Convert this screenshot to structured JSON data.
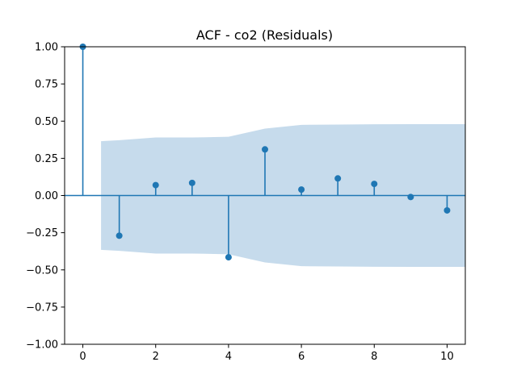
{
  "chart_data": {
    "type": "stem",
    "title": "ACF - co2 (Residuals)",
    "xlabel": "",
    "ylabel": "",
    "xlim": [
      -0.5,
      10.5
    ],
    "ylim": [
      -1.0,
      1.0
    ],
    "x_ticks": [
      0,
      2,
      4,
      6,
      8,
      10
    ],
    "x_tick_labels": [
      "0",
      "2",
      "4",
      "6",
      "8",
      "10"
    ],
    "y_ticks": [
      -1.0,
      -0.75,
      -0.5,
      -0.25,
      0.0,
      0.25,
      0.5,
      0.75,
      1.0
    ],
    "y_tick_labels": [
      "−1.00",
      "−0.75",
      "−0.50",
      "−0.25",
      "0.00",
      "0.25",
      "0.50",
      "0.75",
      "1.00"
    ],
    "grid": false,
    "series": [
      {
        "lags": [
          0,
          1,
          2,
          3,
          4,
          5,
          6,
          7,
          8,
          9,
          10
        ],
        "values": [
          1.0,
          -0.27,
          0.07,
          0.085,
          -0.415,
          0.31,
          0.04,
          0.115,
          0.078,
          -0.01,
          -0.1
        ]
      }
    ],
    "confidence_band": {
      "lags": [
        0.5,
        1,
        2,
        3,
        4,
        5,
        6,
        7,
        8,
        9,
        10,
        10.5
      ],
      "upper": [
        0.365,
        0.372,
        0.39,
        0.39,
        0.395,
        0.45,
        0.475,
        0.477,
        0.479,
        0.48,
        0.48,
        0.48
      ]
    },
    "colors": {
      "stem": "#1f77b4",
      "band": "#c6dbec",
      "axis": "#000000"
    }
  }
}
